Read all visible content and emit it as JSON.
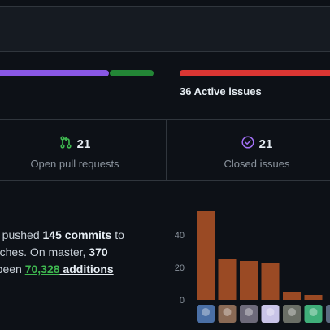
{
  "progress": {
    "pr_bar": {
      "merged_fraction": 0.76,
      "open_fraction": 0.24,
      "merged_color": "#8957e5",
      "open_color": "#238636"
    },
    "issues_bar": {
      "color": "#da3633"
    }
  },
  "issues_summary": {
    "label": "36 Active issues"
  },
  "stats": {
    "pull_requests": {
      "count": "21",
      "label": "Open pull requests",
      "icon": "git-pull-request-icon",
      "color": "#3fb950"
    },
    "closed_issues": {
      "count": "21",
      "label": "Closed issues",
      "icon": "check-circle-icon",
      "color": "#a371f7"
    }
  },
  "commit_summary": {
    "line1_pre": "ve pushed ",
    "line1_bold": "145 commits",
    "line1_post": " to",
    "line2_pre": "anches. On master, ",
    "line2_bold": "370",
    "line3_pre": "e been ",
    "line3_green": "70,328",
    "line3_post": " additions"
  },
  "chart_data": {
    "type": "bar",
    "values": [
      55,
      25,
      24,
      23,
      5,
      3
    ],
    "ylim": [
      0,
      60
    ],
    "yticks": [
      0,
      20,
      40
    ],
    "bar_color": "#9a4a24",
    "grid": false
  },
  "contributors": [
    {
      "avatar": "avatar-1",
      "color": "#4a6fa5"
    },
    {
      "avatar": "avatar-2",
      "color": "#8a6a55"
    },
    {
      "avatar": "avatar-3",
      "color": "#6d6a7a"
    },
    {
      "avatar": "avatar-4",
      "color": "#c9c4e8"
    },
    {
      "avatar": "avatar-5",
      "color": "#6a6e66"
    },
    {
      "avatar": "avatar-6",
      "color": "#3fae79"
    },
    {
      "avatar": "avatar-7",
      "color": "#5a6a80"
    }
  ]
}
